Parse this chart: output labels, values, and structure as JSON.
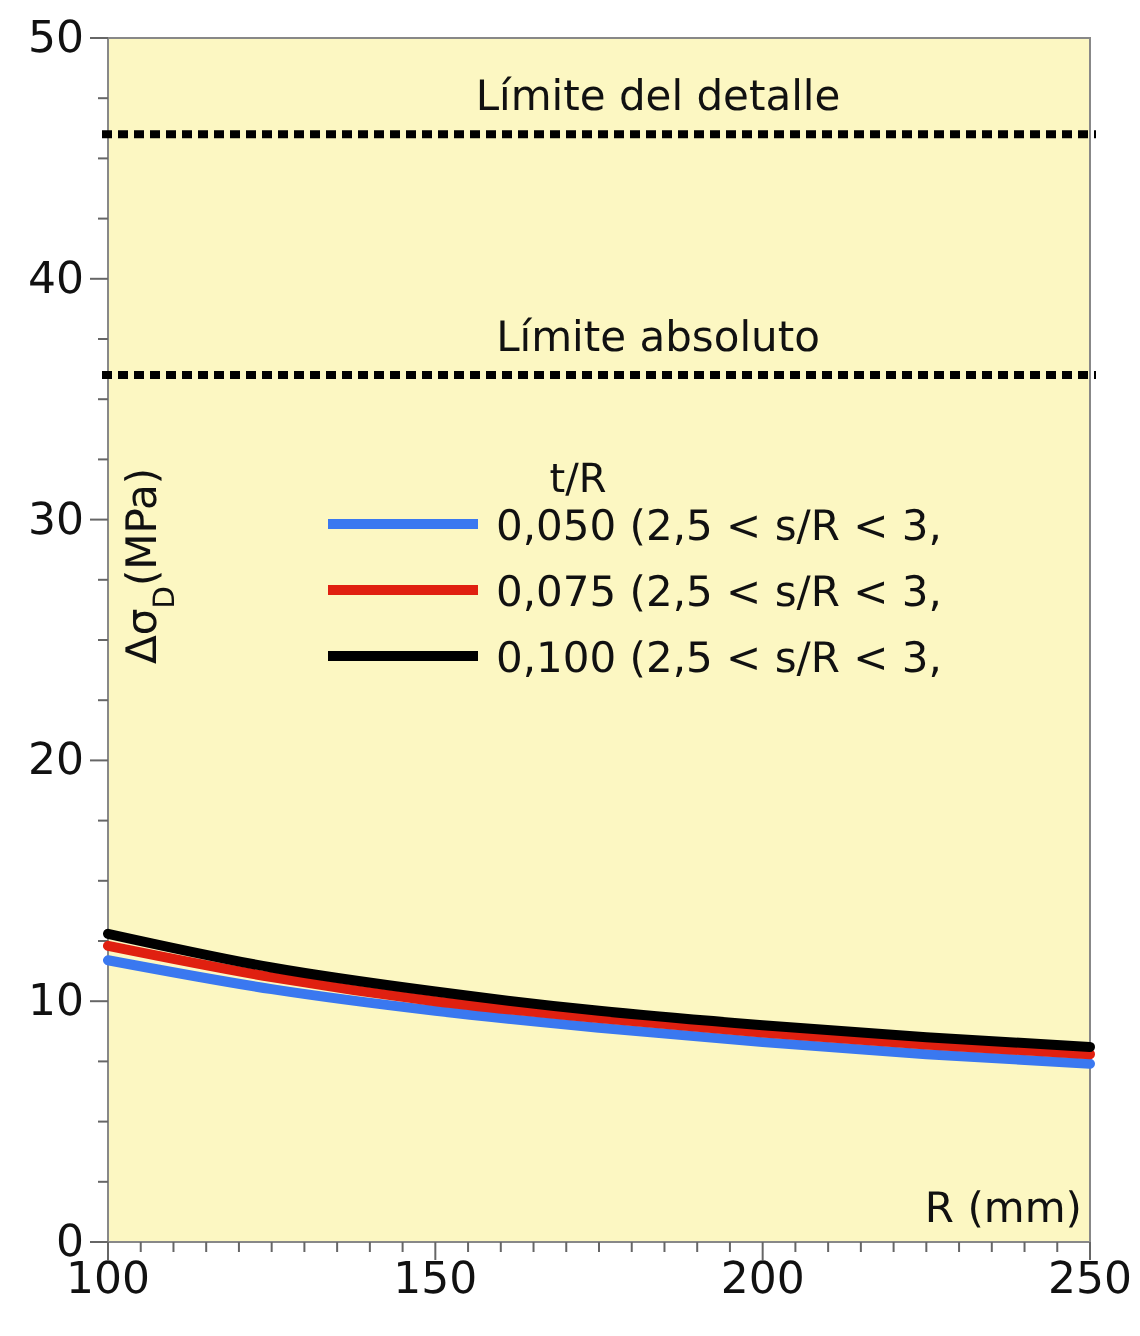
{
  "chart_data": {
    "type": "line",
    "xlabel": "R (mm)",
    "ylabel": "Δσ$_{D}$(MPa)",
    "legend_title": "t/R",
    "x": [
      100,
      125,
      150,
      175,
      200,
      225,
      250
    ],
    "series": [
      {
        "name": "0,050 (2,5 < s/R < 3,",
        "color": "#3a78f0",
        "values": [
          11.7,
          10.5,
          9.6,
          8.9,
          8.3,
          7.8,
          7.4
        ]
      },
      {
        "name": "0,075 (2,5 < s/R < 3,",
        "color": "#e02010",
        "values": [
          12.3,
          11.0,
          10.0,
          9.3,
          8.7,
          8.2,
          7.8
        ]
      },
      {
        "name": "0,100 (2,5 < s/R < 3,",
        "color": "#000000",
        "values": [
          12.8,
          11.4,
          10.4,
          9.6,
          9.0,
          8.5,
          8.1
        ]
      }
    ],
    "xlim": [
      100,
      250
    ],
    "ylim": [
      0,
      50
    ],
    "xticks": [
      100,
      {
        "value": 105,
        "label": null
      },
      {
        "value": 110,
        "label": null
      },
      {
        "value": 115,
        "label": null
      },
      {
        "value": 120,
        "label": null
      },
      {
        "value": 125,
        "label": null
      },
      {
        "value": 130,
        "label": null
      },
      {
        "value": 135,
        "label": null
      },
      {
        "value": 140,
        "label": null
      },
      {
        "value": 145,
        "label": null
      },
      150,
      {
        "value": 155,
        "label": null
      },
      {
        "value": 160,
        "label": null
      },
      {
        "value": 165,
        "label": null
      },
      {
        "value": 170,
        "label": null
      },
      {
        "value": 175,
        "label": null
      },
      {
        "value": 180,
        "label": null
      },
      {
        "value": 185,
        "label": null
      },
      {
        "value": 190,
        "label": null
      },
      {
        "value": 195,
        "label": null
      },
      200,
      {
        "value": 205,
        "label": null
      },
      {
        "value": 210,
        "label": null
      },
      {
        "value": 215,
        "label": null
      },
      {
        "value": 220,
        "label": null
      },
      {
        "value": 225,
        "label": null
      },
      {
        "value": 230,
        "label": null
      },
      {
        "value": 235,
        "label": null
      },
      {
        "value": 240,
        "label": null
      },
      {
        "value": 245,
        "label": null
      },
      250
    ],
    "yticks": [
      0,
      {
        "value": 2.5,
        "label": null
      },
      {
        "value": 5,
        "label": null
      },
      {
        "value": 7.5,
        "label": null
      },
      10,
      {
        "value": 12.5,
        "label": null
      },
      {
        "value": 15,
        "label": null
      },
      {
        "value": 17.5,
        "label": null
      },
      20,
      {
        "value": 22.5,
        "label": null
      },
      {
        "value": 25,
        "label": null
      },
      {
        "value": 27.5,
        "label": null
      },
      30,
      {
        "value": 32.5,
        "label": null
      },
      {
        "value": 35,
        "label": null
      },
      {
        "value": 37.5,
        "label": null
      },
      40,
      {
        "value": 42.5,
        "label": null
      },
      {
        "value": 45,
        "label": null
      },
      {
        "value": 47.5,
        "label": null
      },
      50
    ],
    "ref_lines": [
      {
        "axis": "y",
        "value": 46,
        "label": "Límite del detalle",
        "color": "#000000",
        "line_style": "dotted"
      },
      {
        "axis": "y",
        "value": 36,
        "label": "Límite absoluto",
        "color": "#000000",
        "line_style": "dotted"
      }
    ],
    "legend": "right",
    "grid": false,
    "marker": "none",
    "line_style": "solid"
  }
}
